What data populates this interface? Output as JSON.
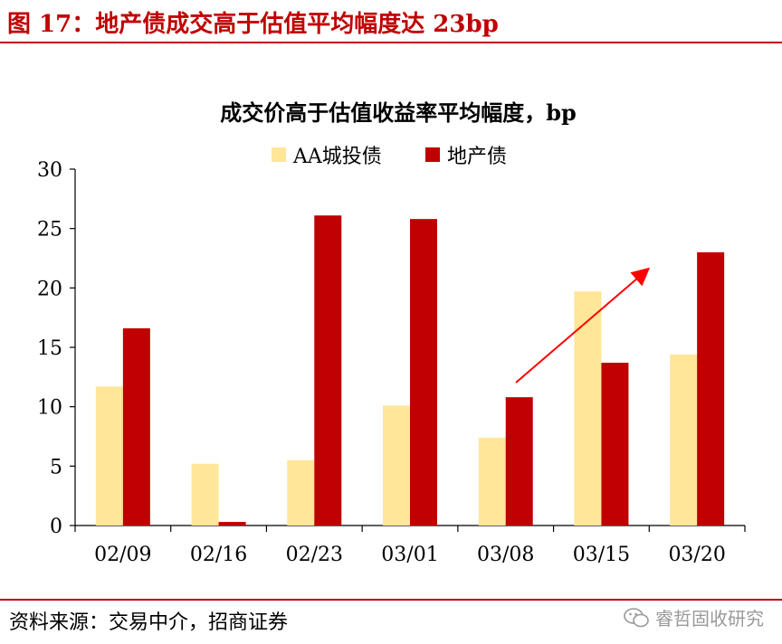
{
  "figure_title": "图 17：地产债成交高于估值平均幅度达 23bp",
  "source": "资料来源：交易中介，招商证券",
  "watermark": "睿哲固收研究",
  "colors": {
    "accent": "#c00000",
    "series_a": "#ffe699",
    "series_b": "#c00000"
  },
  "chart_data": {
    "type": "bar",
    "title": "成交价高于估值收益率平均幅度，bp",
    "categories": [
      "02/09",
      "02/16",
      "02/23",
      "03/01",
      "03/08",
      "03/15",
      "03/20"
    ],
    "series": [
      {
        "name": "AA城投债",
        "values": [
          11.7,
          5.2,
          5.5,
          10.1,
          7.4,
          19.7,
          14.4
        ]
      },
      {
        "name": "地产债",
        "values": [
          16.6,
          0.3,
          26.1,
          25.8,
          10.8,
          13.7,
          23.0
        ]
      }
    ],
    "ylim": [
      0,
      30
    ],
    "yticks": [
      0,
      5,
      10,
      15,
      20,
      25,
      30
    ],
    "legend_position": "top",
    "grid": false,
    "annotation": "arrow"
  }
}
